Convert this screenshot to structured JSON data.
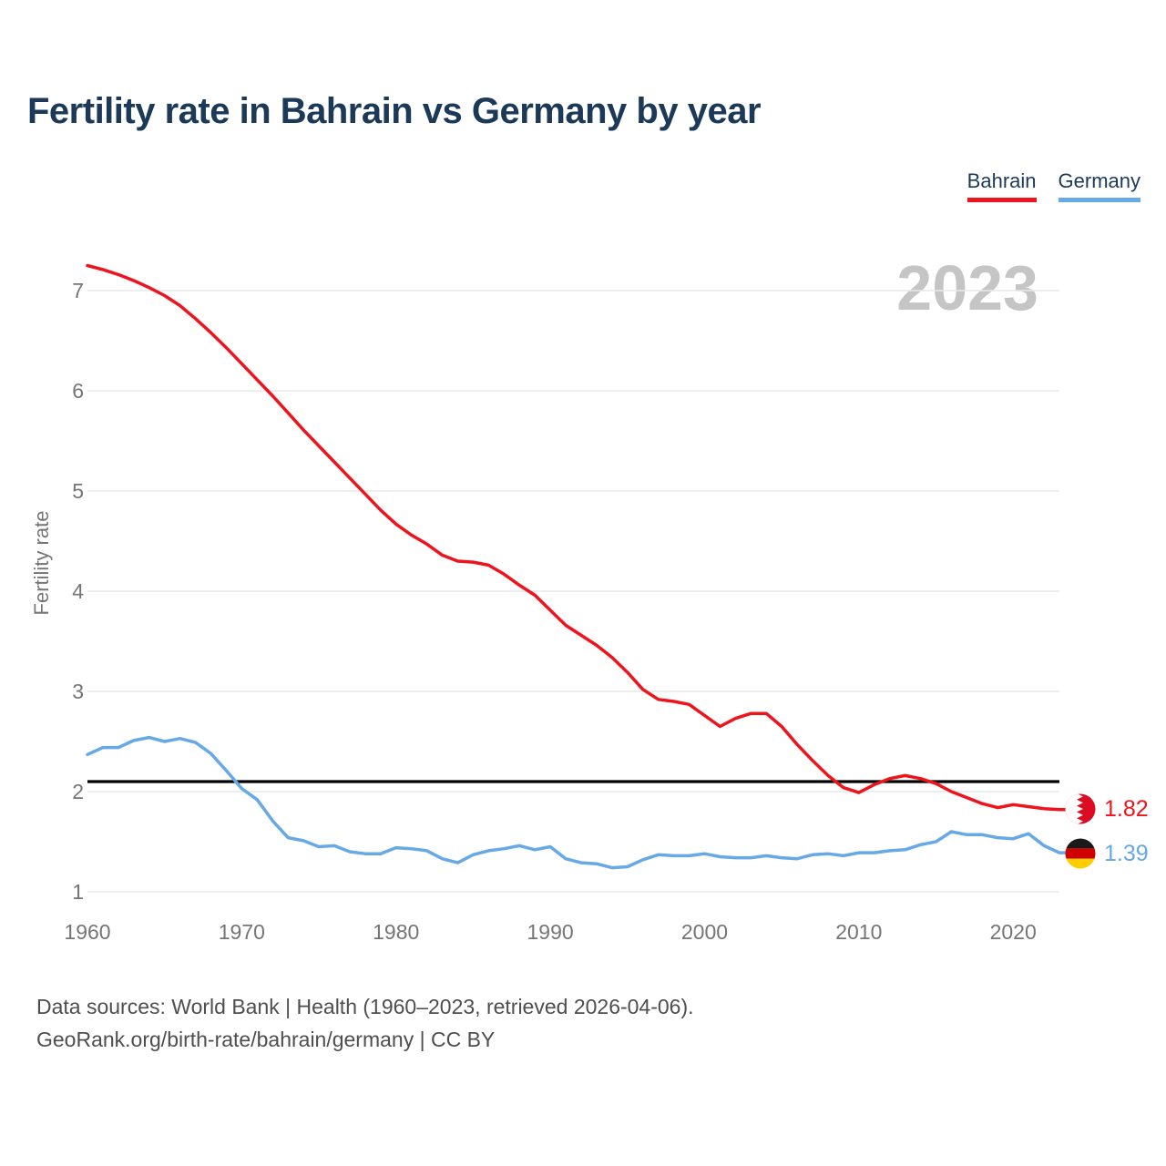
{
  "header": {
    "title": "Fertility rate in Bahrain vs Germany by year"
  },
  "legend": [
    {
      "label": "Bahrain",
      "color": "#ee141e"
    },
    {
      "label": "Germany",
      "color": "#67a9e5"
    }
  ],
  "watermark": "2023",
  "chart_data": {
    "type": "line",
    "title": "Fertility rate in Bahrain vs Germany by year",
    "xlabel": "",
    "ylabel": "Fertility rate",
    "x_ticks": [
      1960,
      1970,
      1980,
      1990,
      2000,
      2010,
      2020
    ],
    "y_ticks": [
      1,
      2,
      3,
      4,
      5,
      6,
      7
    ],
    "xlim": [
      1960,
      2023
    ],
    "ylim": [
      1,
      7.45
    ],
    "grid": "horizontal",
    "legend_position": "top-right",
    "reference_line": {
      "value": 2.1,
      "color": "#000000",
      "meaning": "replacement-level fertility"
    },
    "x": [
      1960,
      1961,
      1962,
      1963,
      1964,
      1965,
      1966,
      1967,
      1968,
      1969,
      1970,
      1971,
      1972,
      1973,
      1974,
      1975,
      1976,
      1977,
      1978,
      1979,
      1980,
      1981,
      1982,
      1983,
      1984,
      1985,
      1986,
      1987,
      1988,
      1989,
      1990,
      1991,
      1992,
      1993,
      1994,
      1995,
      1996,
      1997,
      1998,
      1999,
      2000,
      2001,
      2002,
      2003,
      2004,
      2005,
      2006,
      2007,
      2008,
      2009,
      2010,
      2011,
      2012,
      2013,
      2014,
      2015,
      2016,
      2017,
      2018,
      2019,
      2020,
      2021,
      2022,
      2023
    ],
    "series": [
      {
        "name": "Bahrain",
        "color": "#ee141e",
        "final_label": "1.82",
        "values": [
          7.25,
          7.21,
          7.16,
          7.1,
          7.03,
          6.95,
          6.85,
          6.72,
          6.58,
          6.43,
          6.27,
          6.11,
          5.95,
          5.78,
          5.61,
          5.45,
          5.29,
          5.13,
          4.97,
          4.81,
          4.67,
          4.56,
          4.47,
          4.36,
          4.3,
          4.29,
          4.26,
          4.17,
          4.06,
          3.96,
          3.81,
          3.66,
          3.56,
          3.46,
          3.34,
          3.19,
          3.02,
          2.92,
          2.9,
          2.87,
          2.76,
          2.65,
          2.73,
          2.78,
          2.78,
          2.65,
          2.47,
          2.31,
          2.16,
          2.04,
          1.99,
          2.07,
          2.13,
          2.16,
          2.13,
          2.08,
          2.0,
          1.94,
          1.88,
          1.84,
          1.87,
          1.85,
          1.83,
          1.82
        ]
      },
      {
        "name": "Germany",
        "color": "#67a9e5",
        "final_label": "1.39",
        "values": [
          2.37,
          2.44,
          2.44,
          2.51,
          2.54,
          2.5,
          2.53,
          2.49,
          2.38,
          2.21,
          2.03,
          1.92,
          1.71,
          1.54,
          1.51,
          1.45,
          1.46,
          1.4,
          1.38,
          1.38,
          1.44,
          1.43,
          1.41,
          1.33,
          1.29,
          1.37,
          1.41,
          1.43,
          1.46,
          1.42,
          1.45,
          1.33,
          1.29,
          1.28,
          1.24,
          1.25,
          1.32,
          1.37,
          1.36,
          1.36,
          1.38,
          1.35,
          1.34,
          1.34,
          1.36,
          1.34,
          1.33,
          1.37,
          1.38,
          1.36,
          1.39,
          1.39,
          1.41,
          1.42,
          1.47,
          1.5,
          1.6,
          1.57,
          1.57,
          1.54,
          1.53,
          1.58,
          1.46,
          1.39
        ]
      }
    ]
  },
  "footer": {
    "line1": "Data sources: World Bank | Health (1960–2023, retrieved 2026-04-06).",
    "line2": "GeoRank.org/birth-rate/bahrain/germany | CC BY"
  }
}
